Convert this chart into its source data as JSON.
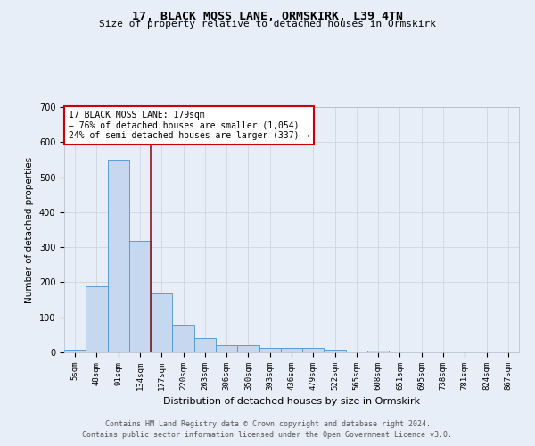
{
  "title1": "17, BLACK MOSS LANE, ORMSKIRK, L39 4TN",
  "title2": "Size of property relative to detached houses in Ormskirk",
  "xlabel": "Distribution of detached houses by size in Ormskirk",
  "ylabel": "Number of detached properties",
  "categories": [
    "5sqm",
    "48sqm",
    "91sqm",
    "134sqm",
    "177sqm",
    "220sqm",
    "263sqm",
    "306sqm",
    "350sqm",
    "393sqm",
    "436sqm",
    "479sqm",
    "522sqm",
    "565sqm",
    "608sqm",
    "651sqm",
    "695sqm",
    "738sqm",
    "781sqm",
    "824sqm",
    "867sqm"
  ],
  "values": [
    8,
    188,
    550,
    317,
    168,
    78,
    42,
    20,
    20,
    12,
    14,
    14,
    8,
    0,
    6,
    0,
    0,
    0,
    0,
    0,
    0
  ],
  "bar_color": "#c5d8f0",
  "bar_edge_color": "#5b9bd5",
  "vline_color": "#8b1a1a",
  "vline_pos": 3.5,
  "annotation_text": "17 BLACK MOSS LANE: 179sqm\n← 76% of detached houses are smaller (1,054)\n24% of semi-detached houses are larger (337) →",
  "annotation_box_facecolor": "#ffffff",
  "annotation_box_edgecolor": "#cc0000",
  "ylim": [
    0,
    700
  ],
  "yticks": [
    0,
    100,
    200,
    300,
    400,
    500,
    600,
    700
  ],
  "footer1": "Contains HM Land Registry data © Crown copyright and database right 2024.",
  "footer2": "Contains public sector information licensed under the Open Government Licence v3.0.",
  "bg_color": "#e8eef8",
  "plot_bg_color": "#e8eef8",
  "grid_color": "#c8d0e0",
  "title_fontsize": 9.5,
  "subtitle_fontsize": 8,
  "tick_fontsize": 6.5,
  "ylabel_fontsize": 7.5,
  "xlabel_fontsize": 8,
  "annot_fontsize": 7,
  "footer_fontsize": 6
}
